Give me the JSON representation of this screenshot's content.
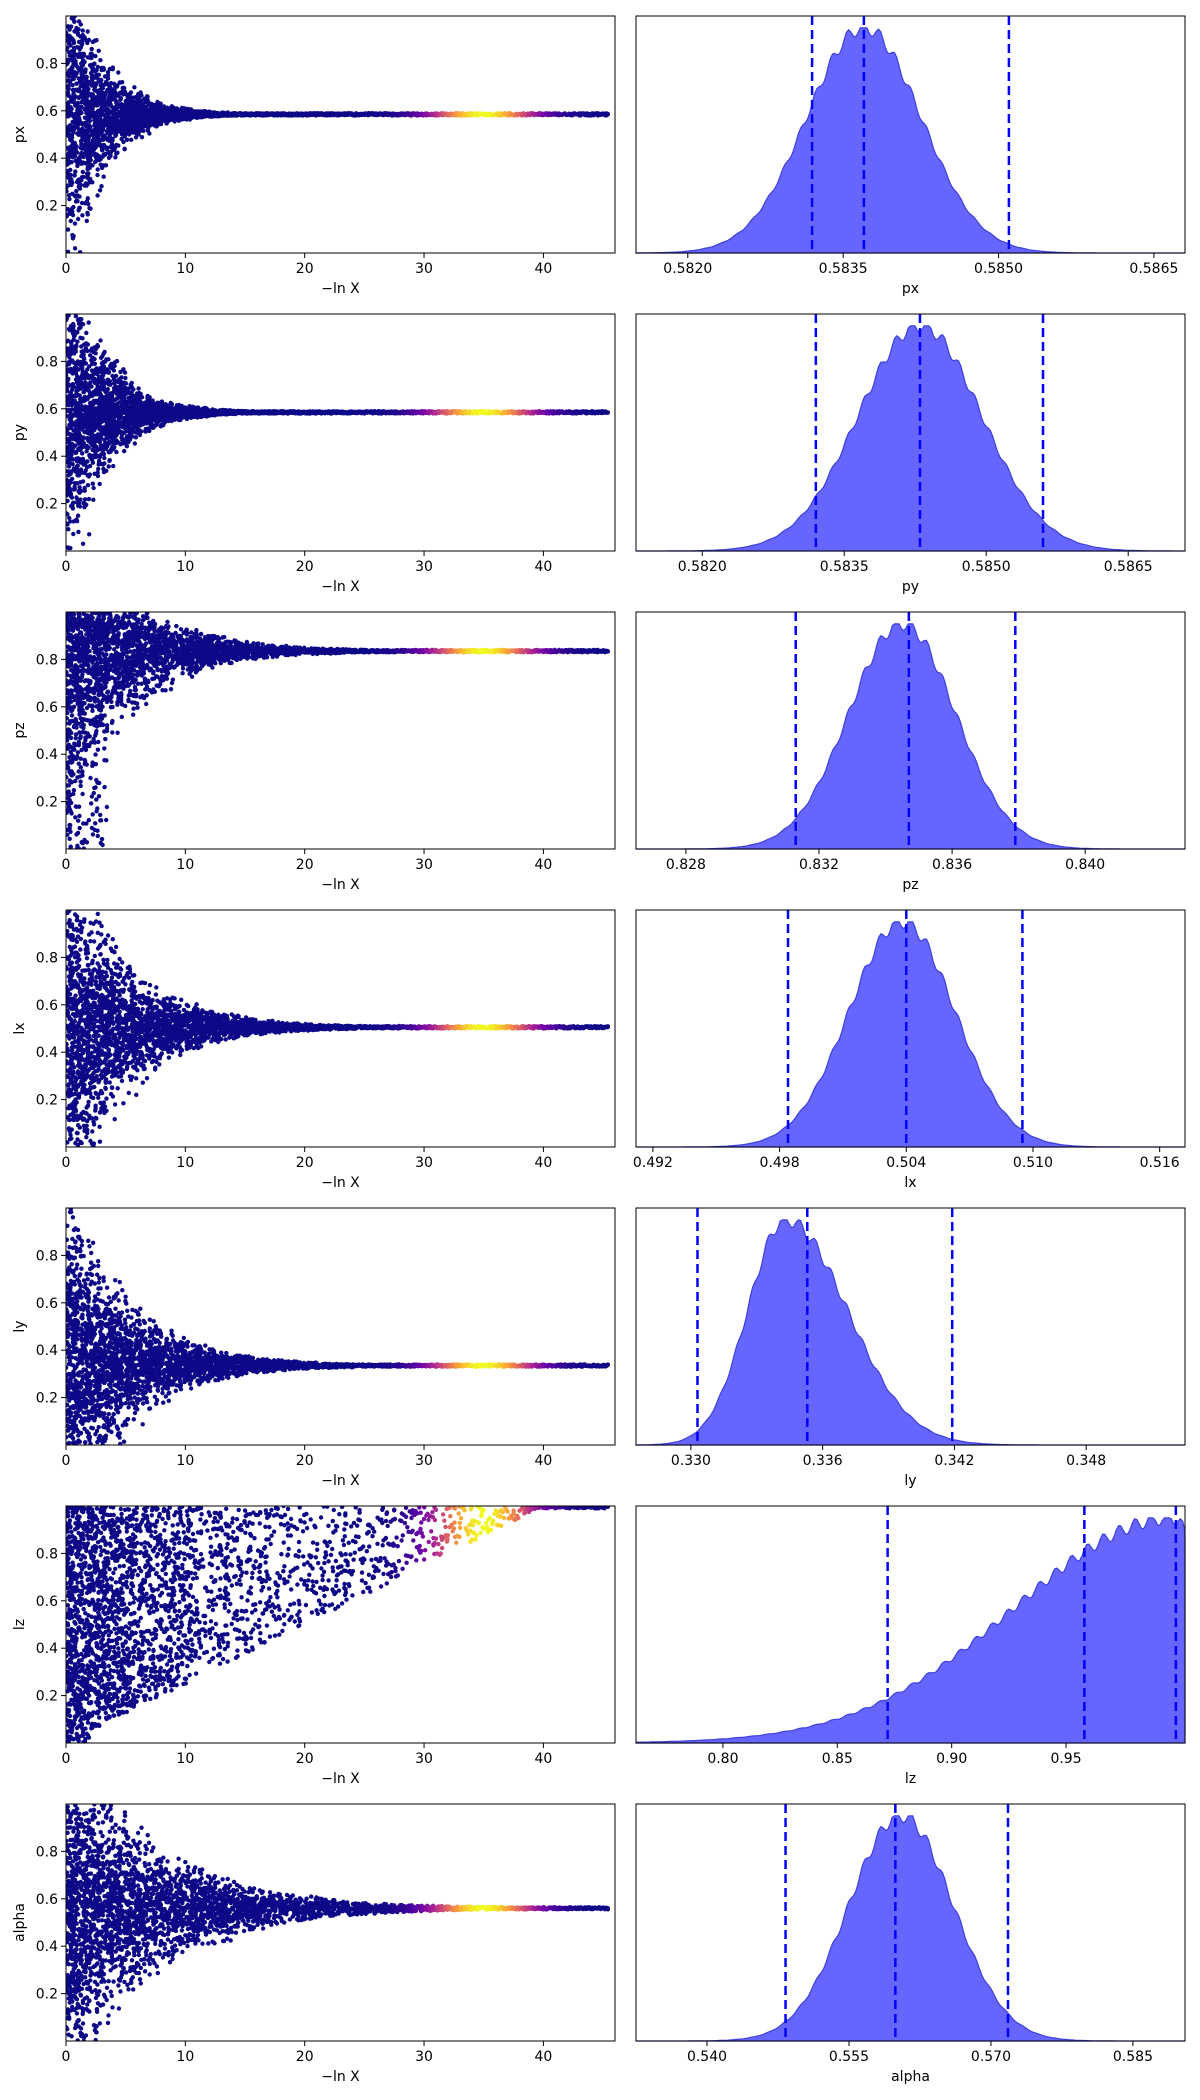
{
  "figure": {
    "colors": {
      "kde_fill": "#6666ff",
      "kde_line": "#3f3fd9",
      "quantile_line": "#0000ff",
      "colormap": [
        "#0d0887",
        "#6a00a8",
        "#b12a90",
        "#e16462",
        "#fca636",
        "#f0f921"
      ],
      "frame": "#000000"
    },
    "colormap_name": "plasma"
  },
  "chart_data": [
    {
      "panel": "trace",
      "type": "scatter",
      "param": "px",
      "xlabel": "−ln X",
      "ylabel": "px",
      "xlim": [
        0,
        46
      ],
      "ylim": [
        0,
        1
      ],
      "xticks": [
        "0",
        "10",
        "20",
        "30",
        "40"
      ],
      "yticks": [
        "0.2",
        "0.4",
        "0.6",
        "0.8"
      ],
      "converged_value": 0.585,
      "spread_start": 1.0,
      "spread_decay": 0.35,
      "spread_floor": 0.006,
      "bright_center_x": 35
    },
    {
      "panel": "marginal",
      "type": "area",
      "param": "px",
      "xlabel": "px",
      "xlim": [
        0.5815,
        0.5868
      ],
      "xticks": [
        "0.5820",
        "0.5835",
        "0.5850",
        "0.5865"
      ],
      "xtick_values": [
        0.582,
        0.5835,
        0.585,
        0.5865
      ],
      "mode": 0.5837,
      "sigma_left": 0.00055,
      "sigma_right": 0.00055,
      "quantiles": [
        0.5832,
        0.5837,
        0.5851
      ]
    },
    {
      "panel": "trace",
      "type": "scatter",
      "param": "py",
      "xlabel": "−ln X",
      "ylabel": "py",
      "xlim": [
        0,
        46
      ],
      "ylim": [
        0,
        1
      ],
      "xticks": [
        "0",
        "10",
        "20",
        "30",
        "40"
      ],
      "yticks": [
        "0.2",
        "0.4",
        "0.6",
        "0.8"
      ],
      "converged_value": 0.585,
      "spread_start": 1.0,
      "spread_decay": 0.33,
      "spread_floor": 0.006,
      "bright_center_x": 35
    },
    {
      "panel": "marginal",
      "type": "area",
      "param": "py",
      "xlabel": "py",
      "xlim": [
        0.5813,
        0.5871
      ],
      "xticks": [
        "0.5820",
        "0.5835",
        "0.5850",
        "0.5865"
      ],
      "xtick_values": [
        0.582,
        0.5835,
        0.585,
        0.5865
      ],
      "mode": 0.5843,
      "sigma_left": 0.00065,
      "sigma_right": 0.00065,
      "quantiles": [
        0.5832,
        0.5843,
        0.5856
      ]
    },
    {
      "panel": "trace",
      "type": "scatter",
      "param": "pz",
      "xlabel": "−ln X",
      "ylabel": "pz",
      "xlim": [
        0,
        46
      ],
      "ylim": [
        0,
        1
      ],
      "xticks": [
        "0",
        "10",
        "20",
        "30",
        "40"
      ],
      "yticks": [
        "0.2",
        "0.4",
        "0.6",
        "0.8"
      ],
      "converged_value": 0.835,
      "spread_start": 1.0,
      "spread_decay": 0.2,
      "spread_floor": 0.006,
      "bright_center_x": 35
    },
    {
      "panel": "marginal",
      "type": "area",
      "param": "pz",
      "xlabel": "pz",
      "xlim": [
        0.8265,
        0.843
      ],
      "xticks": [
        "0.828",
        "0.832",
        "0.836",
        "0.840"
      ],
      "xtick_values": [
        0.828,
        0.832,
        0.836,
        0.84
      ],
      "mode": 0.8345,
      "sigma_left": 0.0016,
      "sigma_right": 0.0016,
      "quantiles": [
        0.8313,
        0.8347,
        0.8379
      ]
    },
    {
      "panel": "trace",
      "type": "scatter",
      "param": "lx",
      "xlabel": "−ln X",
      "ylabel": "lx",
      "xlim": [
        0,
        46
      ],
      "ylim": [
        0,
        1
      ],
      "xticks": [
        "0",
        "10",
        "20",
        "30",
        "40"
      ],
      "yticks": [
        "0.2",
        "0.4",
        "0.6",
        "0.8"
      ],
      "converged_value": 0.505,
      "spread_start": 1.0,
      "spread_decay": 0.2,
      "spread_floor": 0.006,
      "bright_center_x": 35
    },
    {
      "panel": "marginal",
      "type": "area",
      "param": "lx",
      "xlabel": "lx",
      "xlim": [
        0.4912,
        0.5172
      ],
      "xticks": [
        "0.492",
        "0.498",
        "0.504",
        "0.510",
        "0.516"
      ],
      "xtick_values": [
        0.492,
        0.498,
        0.504,
        0.51,
        0.516
      ],
      "mode": 0.5038,
      "sigma_left": 0.0025,
      "sigma_right": 0.0025,
      "quantiles": [
        0.4984,
        0.504,
        0.5095
      ]
    },
    {
      "panel": "trace",
      "type": "scatter",
      "param": "ly",
      "xlabel": "−ln X",
      "ylabel": "ly",
      "xlim": [
        0,
        46
      ],
      "ylim": [
        0,
        1
      ],
      "xticks": [
        "0",
        "10",
        "20",
        "30",
        "40"
      ],
      "yticks": [
        "0.2",
        "0.4",
        "0.6",
        "0.8"
      ],
      "converged_value": 0.335,
      "spread_start": 1.0,
      "spread_decay": 0.2,
      "spread_floor": 0.006,
      "bright_center_x": 35
    },
    {
      "panel": "marginal",
      "type": "area",
      "param": "ly",
      "xlabel": "ly",
      "xlim": [
        0.3275,
        0.3525
      ],
      "xticks": [
        "0.330",
        "0.336",
        "0.342",
        "0.348"
      ],
      "xtick_values": [
        0.33,
        0.336,
        0.342,
        0.348
      ],
      "mode": 0.3343,
      "sigma_left": 0.0017,
      "sigma_right": 0.0028,
      "quantiles": [
        0.3303,
        0.3353,
        0.3419
      ]
    },
    {
      "panel": "trace",
      "type": "scatter",
      "param": "lz",
      "xlabel": "−ln X",
      "ylabel": "lz",
      "xlim": [
        0,
        46
      ],
      "ylim": [
        0,
        1
      ],
      "xticks": [
        "0",
        "10",
        "20",
        "30",
        "40"
      ],
      "yticks": [
        "0.2",
        "0.4",
        "0.6",
        "0.8"
      ],
      "diagonal": true,
      "bright_center_x": 35
    },
    {
      "panel": "marginal",
      "type": "area",
      "param": "lz",
      "xlabel": "lz",
      "xlim": [
        0.762,
        1.002
      ],
      "xticks": [
        "0.80",
        "0.85",
        "0.90",
        "0.95"
      ],
      "xtick_values": [
        0.8,
        0.85,
        0.9,
        0.95
      ],
      "mode": 0.998,
      "sigma_left": 0.07,
      "sigma_right": 0.01,
      "quantiles": [
        0.872,
        0.958,
        0.998
      ]
    },
    {
      "panel": "trace",
      "type": "scatter",
      "param": "alpha",
      "xlabel": "−ln X",
      "ylabel": "alpha",
      "xlim": [
        0,
        46
      ],
      "ylim": [
        0,
        1
      ],
      "xticks": [
        "0",
        "10",
        "20",
        "30",
        "40"
      ],
      "yticks": [
        "0.2",
        "0.4",
        "0.6",
        "0.8"
      ],
      "converged_value": 0.56,
      "spread_start": 1.0,
      "spread_decay": 0.14,
      "spread_floor": 0.006,
      "bright_center_x": 35
    },
    {
      "panel": "marginal",
      "type": "area",
      "param": "alpha",
      "xlabel": "alpha",
      "xlim": [
        0.5325,
        0.5905
      ],
      "xticks": [
        "0.540",
        "0.555",
        "0.570",
        "0.585"
      ],
      "xtick_values": [
        0.54,
        0.555,
        0.57,
        0.585
      ],
      "mode": 0.5605,
      "sigma_left": 0.0055,
      "sigma_right": 0.0055,
      "quantiles": [
        0.5483,
        0.5599,
        0.5718
      ]
    }
  ]
}
